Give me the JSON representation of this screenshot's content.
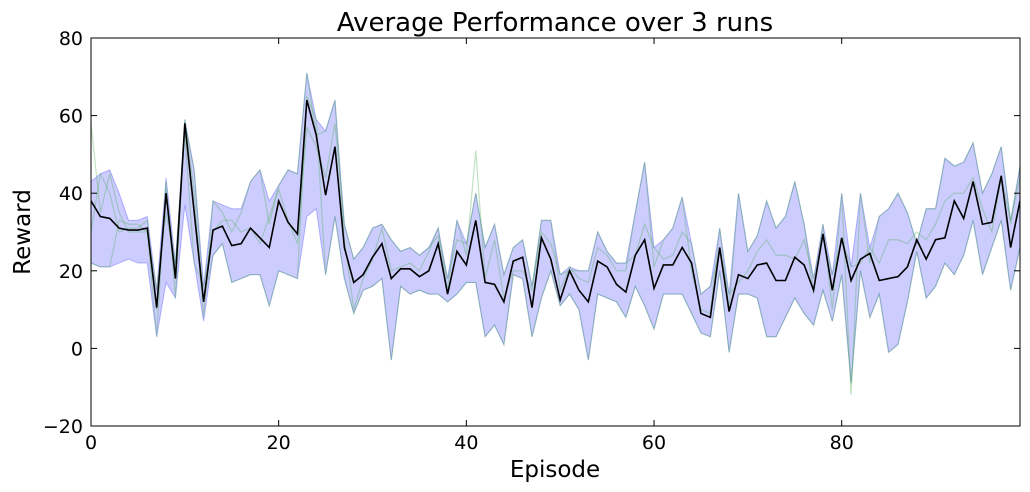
{
  "chart_data": {
    "type": "line",
    "title": "Average Performance over 3 runs",
    "xlabel": "Episode",
    "ylabel": "Reward",
    "xlim": [
      0,
      99
    ],
    "ylim": [
      -20,
      80
    ],
    "xticks": [
      0,
      20,
      40,
      60,
      80
    ],
    "yticks": [
      -20,
      0,
      20,
      40,
      60,
      80
    ],
    "xtick_labels": [
      "0",
      "20",
      "40",
      "60",
      "80"
    ],
    "ytick_labels": [
      "−20",
      "0",
      "20",
      "40",
      "60",
      "80"
    ],
    "grid": false,
    "legend": "none",
    "colors": {
      "mean": "#000000",
      "band": "#0000ff",
      "runs": "#4caf50"
    },
    "x": [
      0,
      1,
      2,
      3,
      4,
      5,
      6,
      7,
      8,
      9,
      10,
      11,
      12,
      13,
      14,
      15,
      16,
      17,
      18,
      19,
      20,
      21,
      22,
      23,
      24,
      25,
      26,
      27,
      28,
      29,
      30,
      31,
      32,
      33,
      34,
      35,
      36,
      37,
      38,
      39,
      40,
      41,
      42,
      43,
      44,
      45,
      46,
      47,
      48,
      49,
      50,
      51,
      52,
      53,
      54,
      55,
      56,
      57,
      58,
      59,
      60,
      61,
      62,
      63,
      64,
      65,
      66,
      67,
      68,
      69,
      70,
      71,
      72,
      73,
      74,
      75,
      76,
      77,
      78,
      79,
      80,
      81,
      82,
      83,
      84,
      85,
      86,
      87,
      88,
      89,
      90,
      91,
      92,
      93,
      94,
      95,
      96,
      97,
      98,
      99
    ],
    "mean": [
      38,
      34,
      33.5,
      31,
      30.5,
      30.5,
      31,
      10.5,
      40,
      18,
      58,
      35,
      12,
      30.5,
      31.5,
      26.5,
      27,
      31,
      28.5,
      26,
      38,
      32.5,
      29.5,
      64,
      55,
      39.5,
      52,
      26,
      17,
      19,
      23.5,
      27,
      18,
      20.5,
      20.5,
      18.5,
      20,
      27,
      14,
      25,
      21.5,
      33,
      17,
      16.5,
      12,
      22.5,
      23.5,
      10.5,
      28.5,
      23,
      12.5,
      20,
      15,
      12,
      22.5,
      21,
      16.5,
      14.5,
      24,
      28,
      15.5,
      21.5,
      21.5,
      26,
      22,
      9,
      8,
      26,
      9.5,
      19,
      18,
      21.5,
      22,
      17.5,
      17.5,
      23.5,
      21.5,
      15,
      29.5,
      15,
      28.5,
      17.5,
      23,
      24.5,
      17.5,
      18,
      18.5,
      21,
      28,
      23,
      28,
      28.5,
      38,
      33.5,
      43,
      32,
      32.5,
      44.5,
      26,
      38
    ],
    "band_upper": [
      43,
      45,
      46,
      40,
      33,
      33,
      34,
      15,
      44,
      22,
      59,
      46,
      16,
      38,
      37,
      36,
      36,
      43,
      46,
      38,
      42,
      46,
      45,
      71,
      59,
      56,
      64,
      32,
      23,
      26,
      31,
      32,
      28,
      25,
      26,
      24,
      26,
      31,
      18,
      33,
      27,
      40,
      26,
      32,
      19,
      26,
      28,
      16,
      33,
      33,
      19,
      21,
      20,
      20,
      30,
      25,
      22,
      22,
      35,
      48,
      26,
      28,
      31,
      39,
      27,
      14,
      16,
      31,
      14,
      40,
      25,
      29,
      38,
      31,
      34,
      43,
      32,
      18,
      32,
      19,
      40,
      21,
      40,
      26,
      34,
      36,
      40,
      35,
      27,
      36,
      36,
      49,
      47,
      48,
      53,
      40,
      45,
      52,
      33,
      47
    ],
    "band_lower": [
      22,
      21,
      21,
      22,
      23,
      22,
      22,
      3,
      17,
      13,
      37,
      22,
      7,
      24,
      27,
      17,
      18,
      19,
      19,
      11,
      20,
      19,
      18,
      34,
      36,
      19,
      34,
      18,
      9,
      15,
      16,
      18,
      -3,
      16,
      14,
      15,
      14,
      14,
      12,
      14,
      17,
      17,
      3,
      6,
      1,
      19,
      18,
      3,
      13,
      20,
      11,
      14,
      10,
      -3,
      14,
      13,
      12,
      8,
      16,
      11,
      5,
      14,
      14,
      14,
      9,
      4,
      3,
      20,
      -1,
      14,
      14,
      13,
      3,
      3,
      8,
      13,
      9,
      6,
      15,
      7,
      19,
      -9,
      20,
      8,
      14,
      -1,
      1,
      12,
      25,
      13,
      16,
      22,
      19,
      24,
      33,
      19,
      26,
      33,
      15,
      26
    ],
    "series": [
      {
        "values": [
          58,
          35,
          45,
          35,
          30,
          30,
          30,
          3,
          43,
          13,
          59,
          40,
          8,
          38,
          35,
          30,
          35,
          43,
          46,
          32,
          42,
          46,
          45,
          71,
          55,
          56,
          64,
          28,
          10,
          18,
          23,
          31,
          20,
          21,
          22,
          20,
          25,
          31,
          15,
          33,
          24,
          51,
          18,
          28,
          13,
          20,
          20,
          15,
          33,
          33,
          15,
          21,
          18,
          17,
          26,
          24,
          20,
          20,
          35,
          48,
          21,
          28,
          31,
          39,
          20,
          10,
          9,
          31,
          10,
          40,
          25,
          29,
          38,
          31,
          34,
          43,
          32,
          14,
          32,
          10,
          40,
          -12,
          40,
          22,
          34,
          36,
          40,
          35,
          27,
          36,
          36,
          49,
          47,
          48,
          53,
          40,
          45,
          52,
          32,
          47
        ]
      },
      {
        "values": [
          30,
          45,
          40,
          30,
          31,
          31,
          33,
          10,
          41,
          20,
          58,
          46,
          12,
          24,
          27,
          17,
          18,
          19,
          19,
          11,
          20,
          19,
          18,
          65,
          59,
          19,
          34,
          18,
          9,
          15,
          16,
          18,
          -3,
          16,
          14,
          15,
          14,
          14,
          12,
          14,
          17,
          17,
          3,
          6,
          1,
          19,
          18,
          3,
          13,
          20,
          11,
          14,
          10,
          -3,
          14,
          13,
          12,
          8,
          16,
          11,
          5,
          14,
          14,
          14,
          9,
          4,
          3,
          20,
          -1,
          14,
          14,
          13,
          3,
          3,
          8,
          13,
          9,
          6,
          15,
          7,
          19,
          -9,
          20,
          8,
          14,
          -1,
          1,
          12,
          25,
          13,
          16,
          22,
          19,
          24,
          33,
          19,
          26,
          33,
          15,
          26
        ]
      },
      {
        "values": [
          22,
          21,
          21,
          33,
          32,
          32,
          30,
          15,
          35,
          22,
          55,
          22,
          16,
          30,
          33,
          33,
          30,
          31,
          27,
          34,
          41,
          33,
          27,
          57,
          52,
          44,
          58,
          32,
          23,
          26,
          31,
          32,
          28,
          25,
          26,
          24,
          26,
          29,
          18,
          28,
          27,
          40,
          26,
          32,
          19,
          26,
          28,
          16,
          30,
          27,
          19,
          20,
          20,
          20,
          30,
          25,
          22,
          22,
          24,
          32,
          26,
          23,
          24,
          30,
          27,
          14,
          16,
          25,
          14,
          17,
          20,
          25,
          28,
          24,
          24,
          23,
          28,
          18,
          29,
          19,
          28,
          21,
          22,
          26,
          22,
          28,
          28,
          27,
          30,
          28,
          32,
          38,
          40,
          40,
          44,
          36,
          30,
          44,
          33,
          44
        ]
      }
    ]
  }
}
